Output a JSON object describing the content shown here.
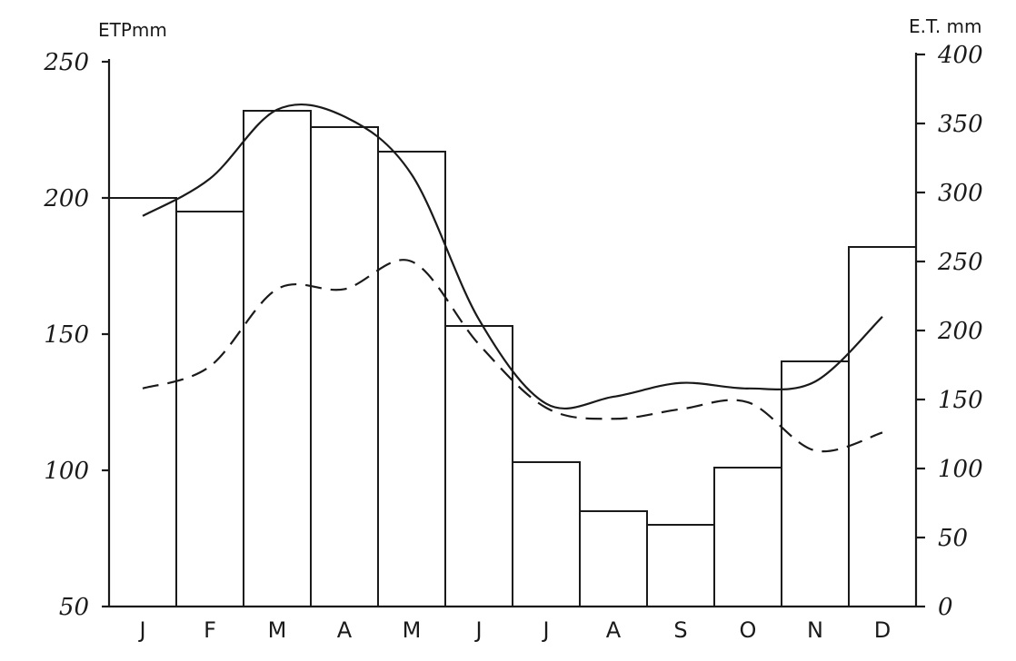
{
  "chart_data": {
    "type": "bar",
    "categories": [
      "J",
      "F",
      "M",
      "A",
      "M",
      "J",
      "J",
      "A",
      "S",
      "O",
      "N",
      "D"
    ],
    "left_axis": {
      "label": "ETPmm",
      "range": [
        50,
        250
      ],
      "ticks": [
        250,
        200,
        150,
        100,
        50
      ]
    },
    "right_axis": {
      "label": "E.T. mm",
      "range": [
        0,
        400
      ],
      "ticks": [
        400,
        350,
        300,
        250,
        200,
        150,
        100,
        50,
        0
      ]
    },
    "series": [
      {
        "type": "bar",
        "axis": "left",
        "values": [
          200,
          195,
          232,
          226,
          217,
          153,
          103,
          85,
          80,
          101,
          140,
          182
        ]
      },
      {
        "type": "line",
        "style": "solid",
        "axis": "right",
        "values": [
          283,
          310,
          360,
          355,
          313,
          208,
          147,
          152,
          162,
          158,
          163,
          210
        ]
      },
      {
        "type": "line",
        "style": "dashed",
        "axis": "right",
        "values": [
          158,
          174,
          230,
          230,
          250,
          190,
          144,
          136,
          143,
          148,
          113,
          126
        ]
      }
    ],
    "grid": false,
    "legend": "none"
  }
}
